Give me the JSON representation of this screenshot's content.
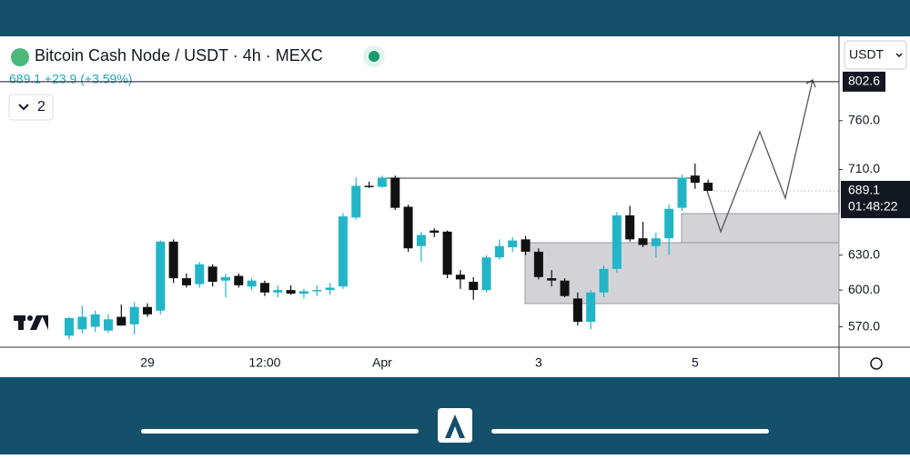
{
  "header": {
    "title": "Bitcoin Cash Node / USDT · 4h · MEXC",
    "legend": "689.1 +23.9 (+3.59%)",
    "indicators": "2",
    "currency": "USDT"
  },
  "chart_data": {
    "type": "candlestick",
    "categories": [
      null,
      null,
      null,
      null,
      null,
      null,
      "29",
      null,
      null,
      null,
      null,
      null,
      null,
      null,
      null,
      "12:00",
      null,
      null,
      null,
      null,
      null,
      null,
      null,
      null,
      "Apr",
      null,
      null,
      null,
      null,
      null,
      null,
      null,
      null,
      null,
      null,
      null,
      "3",
      null,
      null,
      null,
      null,
      null,
      null,
      null,
      null,
      null,
      null,
      null,
      "5",
      null
    ],
    "open": [
      563,
      568,
      570,
      567,
      578,
      572,
      586,
      583,
      642,
      610,
      605,
      620,
      608,
      612,
      603,
      606,
      598,
      600,
      597,
      599,
      600,
      603,
      664,
      694,
      693,
      702,
      674,
      638,
      652,
      651,
      613,
      607,
      600,
      628,
      637,
      644,
      633,
      610,
      608,
      593,
      574,
      598,
      618,
      666,
      645,
      638,
      645,
      673,
      704,
      697
    ],
    "high": [
      578,
      587,
      583,
      580,
      588,
      590,
      589,
      643,
      644,
      614,
      624,
      622,
      614,
      614,
      610,
      608,
      604,
      604,
      601,
      604,
      606,
      668,
      702,
      698,
      704,
      704,
      676,
      651,
      654,
      652,
      617,
      611,
      630,
      644,
      646,
      647,
      636,
      617,
      610,
      598,
      600,
      621,
      669,
      675,
      660,
      650,
      676,
      705,
      716,
      700
    ],
    "low": [
      560,
      565,
      566,
      565,
      571,
      564,
      578,
      580,
      606,
      602,
      602,
      603,
      594,
      602,
      600,
      595,
      594,
      596,
      593,
      595,
      596,
      601,
      662,
      692,
      692,
      671,
      633,
      624,
      646,
      610,
      601,
      592,
      598,
      626,
      633,
      630,
      609,
      603,
      594,
      571,
      568,
      594,
      615,
      642,
      637,
      628,
      630,
      670,
      691,
      689.1
    ],
    "close": [
      577,
      578,
      580,
      576,
      571,
      586,
      580,
      642,
      610,
      604,
      622,
      607,
      611,
      604,
      608,
      598,
      600,
      597,
      599,
      600,
      602,
      665,
      694,
      693,
      702,
      673,
      636,
      648,
      650,
      613,
      609,
      600,
      628,
      638,
      643,
      633,
      611,
      608,
      595,
      574,
      598,
      618,
      666,
      644,
      639,
      645,
      672,
      702,
      697,
      689.1
    ],
    "up_color": "#22b5c8",
    "down_color": "#111111",
    "log_scale": true,
    "ylim": [
      554,
      855
    ],
    "yticks": [
      {
        "value": 570,
        "label": "570.0"
      },
      {
        "value": 600,
        "label": "600.0"
      },
      {
        "value": 630,
        "label": "630.0"
      },
      {
        "value": 710,
        "label": "710.0"
      },
      {
        "value": 760,
        "label": "760.0"
      }
    ],
    "level": 802.6,
    "countdown": "01:48:22"
  }
}
